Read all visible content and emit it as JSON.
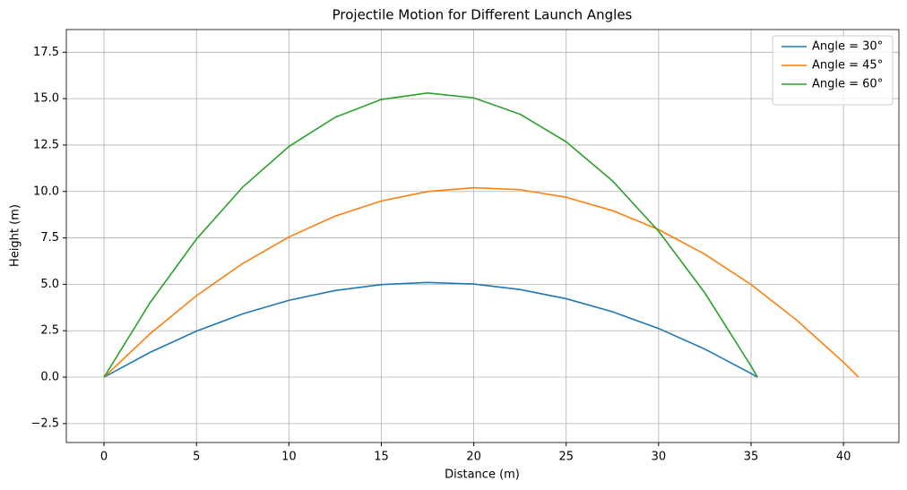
{
  "chart_data": {
    "type": "line",
    "title": "Projectile Motion for Different Launch Angles",
    "x_label": "Distance (m)",
    "y_label": "Height (m)",
    "series": [
      {
        "name": "Angle = 30°",
        "color": "#1f77b4",
        "x": [
          0,
          2.5,
          5,
          7.5,
          10,
          12.5,
          15,
          17.5,
          20,
          22.5,
          25,
          27.5,
          30,
          32.5,
          35,
          35.35
        ],
        "values": [
          0,
          1.341,
          2.479,
          3.411,
          4.14,
          4.665,
          4.985,
          5.102,
          5.014,
          4.721,
          4.226,
          3.525,
          2.621,
          1.512,
          0.199,
          0
        ]
      },
      {
        "name": "Angle = 45°",
        "color": "#ff7f0e",
        "x": [
          0,
          2.5,
          5,
          7.5,
          10,
          12.5,
          15,
          17.5,
          20,
          22.5,
          25,
          27.5,
          30,
          32.5,
          35,
          37.5,
          40,
          40.82
        ],
        "values": [
          0,
          2.347,
          4.388,
          6.122,
          7.55,
          8.672,
          9.488,
          9.997,
          10.2,
          10.097,
          9.688,
          8.972,
          7.95,
          6.622,
          4.988,
          3.047,
          0.8,
          0
        ]
      },
      {
        "name": "Angle = 60°",
        "color": "#2ca02c",
        "x": [
          0,
          2.5,
          5,
          7.5,
          10,
          12.5,
          15,
          17.5,
          20,
          22.5,
          25,
          27.5,
          30,
          32.5,
          35,
          35.35
        ],
        "values": [
          0,
          4.024,
          7.435,
          10.234,
          12.421,
          13.995,
          14.956,
          15.305,
          15.041,
          14.165,
          12.676,
          10.575,
          7.862,
          4.536,
          0.597,
          0
        ]
      }
    ],
    "xlim": [
      -2.04,
      43.0
    ],
    "ylim": [
      -3.52,
      18.72
    ],
    "xticks": [
      0,
      5,
      10,
      15,
      20,
      25,
      30,
      35,
      40
    ],
    "yticks": [
      {
        "value": -2.5,
        "label": "−2.5"
      },
      {
        "value": 0,
        "label": "0.0"
      },
      2.5,
      {
        "value": 5,
        "label": "5.0"
      },
      7.5,
      {
        "value": 10,
        "label": "10.0"
      },
      12.5,
      {
        "value": 15,
        "label": "15.0"
      },
      17.5
    ],
    "grid": true,
    "legend": "upper right"
  }
}
